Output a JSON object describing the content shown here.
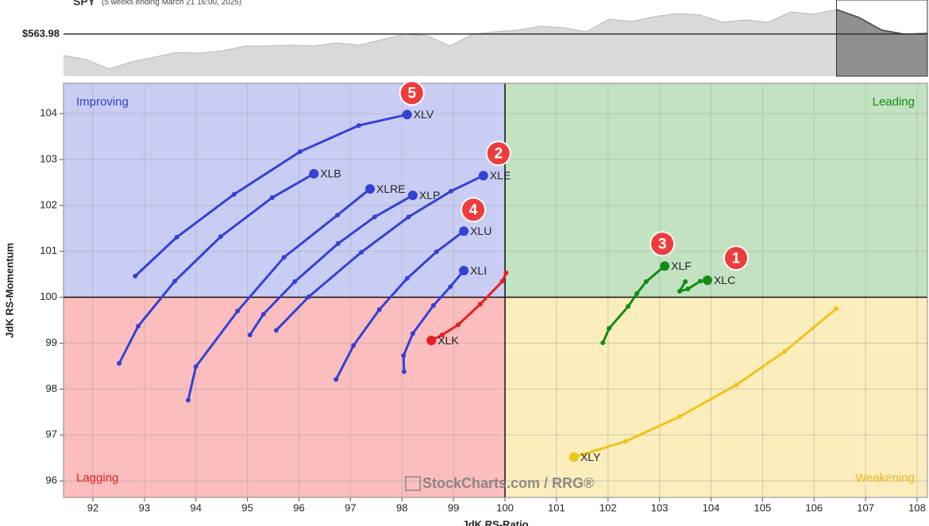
{
  "chart_data": [
    {
      "type": "area",
      "title": "SPY",
      "subtitle": "(5 weeks ending March 21 16:00, 2025)",
      "price": 563.98,
      "price_label": "$563.98",
      "ylim": [
        470,
        640
      ],
      "highlight_start": 34,
      "color": "#d9d9d9",
      "values": [
        516.0,
        507.2,
        485.9,
        501.9,
        512.5,
        523.1,
        521.4,
        526.7,
        537.3,
        537.3,
        539.1,
        537.3,
        544.4,
        539.1,
        551.5,
        563.9,
        560.3,
        537.3,
        563.9,
        569.2,
        572.7,
        581.6,
        578.0,
        569.2,
        597.5,
        592.2,
        602.8,
        609.9,
        606.4,
        590.4,
        595.7,
        590.4,
        613.5,
        608.1,
        618.8,
        601.1,
        572.7,
        563.9,
        565.6
      ]
    },
    {
      "type": "scatter",
      "x_label": "JdK RS-Ratio",
      "y_label": "JdK RS-Momentum",
      "xlim": [
        91.43,
        108.2
      ],
      "ylim": [
        95.64,
        104.66
      ],
      "xticks": [
        92,
        93,
        94,
        95,
        96,
        97,
        98,
        99,
        100,
        101,
        102,
        103,
        104,
        105,
        106,
        107,
        108
      ],
      "yticks": [
        96,
        97,
        98,
        99,
        100,
        101,
        102,
        103,
        104
      ],
      "center_x": 100,
      "center_y": 100,
      "grid": true,
      "quadrants": {
        "improving": "Improving",
        "leading": "Leading",
        "lagging": "Lagging",
        "weakening": "Weakening"
      },
      "watermark": "StockCharts.com / RRG®",
      "series": [
        {
          "name": "XLV",
          "color": "#3441d6",
          "badge": "5",
          "x": [
            92.82,
            93.63,
            94.74,
            96.02,
            97.16,
            98.1
          ],
          "values": [
            100.46,
            101.31,
            102.24,
            103.17,
            103.74,
            103.98
          ]
        },
        {
          "name": "XLB",
          "color": "#3441d6",
          "x": [
            92.51,
            92.88,
            93.59,
            94.48,
            95.48,
            96.29
          ],
          "values": [
            98.56,
            99.37,
            100.35,
            101.32,
            102.17,
            102.69
          ]
        },
        {
          "name": "XLRE",
          "color": "#3441d6",
          "x": [
            93.85,
            94.0,
            94.81,
            95.71,
            96.75,
            97.38
          ],
          "values": [
            97.76,
            98.49,
            99.7,
            100.87,
            101.79,
            102.36
          ]
        },
        {
          "name": "XLP",
          "color": "#3441d6",
          "x": [
            95.05,
            95.31,
            95.92,
            96.76,
            97.47,
            98.21
          ],
          "values": [
            99.18,
            99.63,
            100.34,
            101.17,
            101.75,
            102.22
          ]
        },
        {
          "name": "XLE",
          "color": "#3441d6",
          "badge": "2",
          "x": [
            95.56,
            96.19,
            97.21,
            98.13,
            98.95,
            99.58
          ],
          "values": [
            99.28,
            100.01,
            100.98,
            101.75,
            102.31,
            102.65
          ]
        },
        {
          "name": "XLU",
          "color": "#3441d6",
          "badge": "4",
          "x": [
            96.72,
            97.06,
            97.56,
            98.1,
            98.67,
            99.2
          ],
          "values": [
            98.21,
            98.95,
            99.73,
            100.41,
            100.99,
            101.44
          ]
        },
        {
          "name": "XLI",
          "color": "#3441d6",
          "x": [
            98.04,
            98.03,
            98.21,
            98.61,
            98.94,
            99.2
          ],
          "values": [
            98.38,
            98.73,
            99.21,
            99.82,
            100.23,
            100.58
          ]
        },
        {
          "name": "XLK",
          "color": "#e5201f",
          "x": [
            100.02,
            99.95,
            99.52,
            99.09,
            98.78,
            98.57
          ],
          "values": [
            100.53,
            100.35,
            99.85,
            99.4,
            99.18,
            99.06
          ]
        },
        {
          "name": "XLF",
          "color": "#138d13",
          "badge": "3",
          "x": [
            101.9,
            102.02,
            102.39,
            102.56,
            102.74,
            103.1
          ],
          "values": [
            99.01,
            99.32,
            99.8,
            100.08,
            100.34,
            100.68
          ]
        },
        {
          "name": "XLC",
          "color": "#138d13",
          "badge": "1",
          "x": [
            103.5,
            103.39,
            103.55,
            103.79,
            103.93
          ],
          "values": [
            100.34,
            100.13,
            100.18,
            100.35,
            100.37
          ]
        },
        {
          "name": "XLY",
          "color": "#efc41a",
          "x": [
            106.43,
            105.43,
            104.49,
            103.39,
            102.34,
            101.34
          ],
          "values": [
            99.75,
            98.82,
            98.09,
            97.4,
            96.86,
            96.52
          ]
        }
      ]
    }
  ]
}
